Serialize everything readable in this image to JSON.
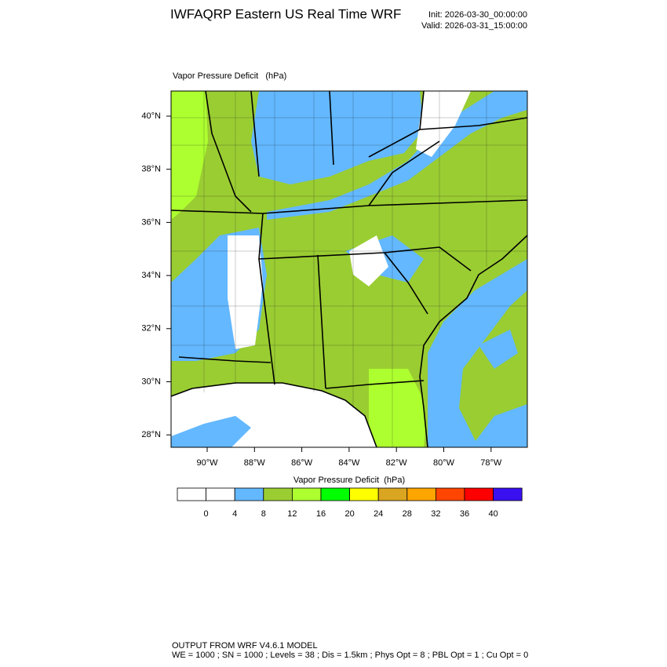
{
  "header": {
    "title": "IWFAQRP Eastern US Real Time WRF",
    "init": "Init: 2026-03-30_00:00:00",
    "valid": "Valid: 2026-03-31_15:00:00"
  },
  "map": {
    "subtitle": "Vapor Pressure Deficit   (hPa)",
    "lat_labels": [
      "40°N",
      "38°N",
      "36°N",
      "34°N",
      "32°N",
      "30°N",
      "28°N"
    ],
    "lon_labels": [
      "90°W",
      "88°W",
      "86°W",
      "84°W",
      "82°W",
      "80°W",
      "78°W"
    ]
  },
  "colorbar": {
    "title": "Vapor Pressure Deficit  (hPa)",
    "colors": [
      "#ffffff",
      "#ffffff",
      "#63b8ff",
      "#9acd32",
      "#adff2f",
      "#00ff00",
      "#ffff00",
      "#daa520",
      "#ffa500",
      "#ff4500",
      "#ff0000",
      "#3a10f0"
    ],
    "labels": [
      0,
      4,
      8,
      12,
      16,
      20,
      24,
      28,
      32,
      36,
      40
    ]
  },
  "footer": {
    "line1": "OUTPUT FROM WRF V4.6.1 MODEL",
    "line2": "WE = 1000 ; SN = 1000 ; Levels = 38 ; Dis = 1.5km ; Phys Opt = 8 ; PBL Opt = 1 ; Cu Opt = 0"
  }
}
